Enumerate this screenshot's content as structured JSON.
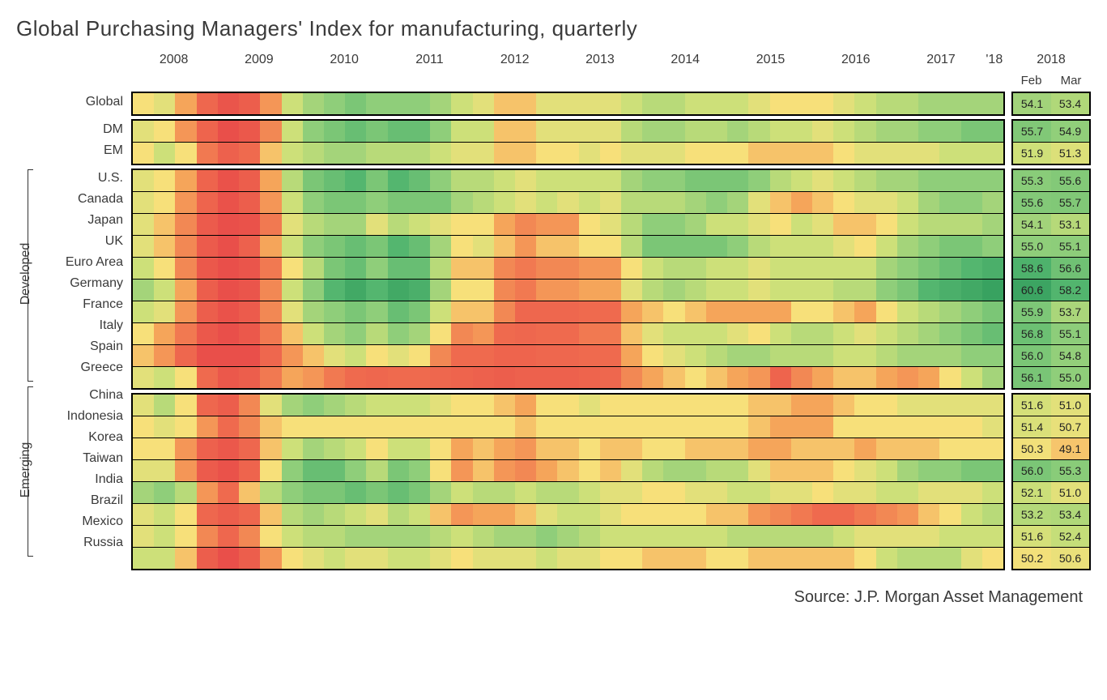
{
  "title": "Global Purchasing Managers' Index for manufacturing, quarterly",
  "source": "Source: J.P. Morgan Asset Management",
  "years": [
    "2008",
    "2009",
    "2010",
    "2011",
    "2012",
    "2013",
    "2014",
    "2015",
    "2016",
    "2017",
    "'18"
  ],
  "right_header": "2018",
  "right_sub": [
    "Feb",
    "Mar"
  ],
  "group_labels": {
    "developed": "Developed",
    "emerging": "Emerging"
  },
  "color_scale": {
    "min": 35,
    "max": 62,
    "stops": [
      {
        "v": 35,
        "c": "#e94f4a"
      },
      {
        "v": 44,
        "c": "#ef6a4e"
      },
      {
        "v": 48,
        "c": "#f5a55a"
      },
      {
        "v": 50,
        "c": "#f7e07a"
      },
      {
        "v": 52,
        "c": "#cde079"
      },
      {
        "v": 55,
        "c": "#8fce7a"
      },
      {
        "v": 58,
        "c": "#54b66f"
      },
      {
        "v": 62,
        "c": "#2f9b5b"
      }
    ]
  },
  "quarters_count": 41,
  "groups": [
    {
      "id": "global",
      "rows": [
        {
          "name": "Global",
          "vals": [
            50,
            51,
            48,
            43,
            37,
            40,
            47,
            52,
            54,
            55,
            56,
            55,
            55,
            55,
            54,
            52,
            51,
            49,
            49,
            51,
            51,
            51,
            51,
            52,
            53,
            53,
            52,
            52,
            52,
            51,
            50,
            50,
            50,
            51,
            52,
            53,
            53,
            54,
            54,
            54,
            54
          ],
          "feb": 54.1,
          "mar": 53.4
        }
      ]
    },
    {
      "id": "dm_em",
      "rows": [
        {
          "name": "DM",
          "vals": [
            51,
            50,
            47,
            42,
            35,
            38,
            46,
            52,
            55,
            56,
            57,
            56,
            57,
            57,
            55,
            52,
            52,
            49,
            49,
            51,
            51,
            51,
            51,
            53,
            54,
            54,
            53,
            53,
            54,
            53,
            52,
            52,
            51,
            52,
            53,
            54,
            54,
            55,
            55,
            56,
            56
          ],
          "feb": 55.7,
          "mar": 54.9
        },
        {
          "name": "EM",
          "vals": [
            50,
            52,
            50,
            45,
            41,
            44,
            49,
            52,
            53,
            54,
            54,
            53,
            53,
            53,
            52,
            51,
            51,
            49,
            49,
            50,
            50,
            51,
            50,
            51,
            51,
            51,
            50,
            50,
            50,
            49,
            49,
            49,
            49,
            50,
            51,
            51,
            51,
            51,
            52,
            52,
            52
          ],
          "feb": 51.9,
          "mar": 51.3
        }
      ]
    },
    {
      "id": "developed",
      "label": "Developed",
      "rows": [
        {
          "name": "U.S.",
          "vals": [
            51,
            50,
            48,
            42,
            36,
            40,
            48,
            53,
            56,
            57,
            58,
            56,
            58,
            57,
            55,
            53,
            53,
            52,
            51,
            52,
            52,
            52,
            52,
            54,
            55,
            55,
            56,
            56,
            56,
            55,
            53,
            52,
            51,
            52,
            53,
            54,
            54,
            55,
            55,
            55,
            55
          ],
          "feb": 55.3,
          "mar": 55.6
        },
        {
          "name": "Canada",
          "vals": [
            51,
            50,
            47,
            42,
            36,
            40,
            47,
            52,
            55,
            56,
            56,
            55,
            56,
            56,
            56,
            54,
            53,
            52,
            51,
            52,
            51,
            52,
            51,
            53,
            53,
            53,
            54,
            55,
            54,
            51,
            49,
            48,
            49,
            50,
            51,
            51,
            52,
            54,
            55,
            55,
            54
          ],
          "feb": 55.6,
          "mar": 55.7
        },
        {
          "name": "Japan",
          "vals": [
            51,
            49,
            46,
            39,
            32,
            36,
            45,
            51,
            53,
            54,
            54,
            51,
            53,
            52,
            51,
            50,
            50,
            48,
            46,
            47,
            47,
            50,
            51,
            53,
            55,
            55,
            54,
            52,
            52,
            51,
            50,
            52,
            51,
            49,
            49,
            50,
            52,
            53,
            53,
            53,
            54
          ],
          "feb": 54.1,
          "mar": 53.1
        },
        {
          "name": "UK",
          "vals": [
            51,
            49,
            46,
            39,
            35,
            41,
            48,
            52,
            55,
            56,
            57,
            56,
            58,
            57,
            54,
            50,
            51,
            49,
            47,
            49,
            49,
            50,
            50,
            53,
            56,
            56,
            56,
            56,
            55,
            53,
            52,
            52,
            52,
            51,
            50,
            52,
            54,
            55,
            56,
            56,
            55
          ],
          "feb": 55.0,
          "mar": 55.1
        },
        {
          "name": "Euro Area",
          "vals": [
            52,
            50,
            46,
            38,
            34,
            37,
            45,
            50,
            53,
            56,
            57,
            55,
            57,
            57,
            53,
            49,
            49,
            46,
            45,
            46,
            46,
            47,
            47,
            50,
            52,
            53,
            53,
            52,
            52,
            51,
            52,
            52,
            52,
            52,
            52,
            54,
            55,
            56,
            57,
            58,
            59
          ],
          "feb": 58.6,
          "mar": 56.6
        },
        {
          "name": "Germany",
          "vals": [
            54,
            52,
            48,
            40,
            34,
            37,
            46,
            52,
            55,
            58,
            60,
            58,
            60,
            59,
            54,
            50,
            50,
            46,
            45,
            47,
            47,
            48,
            48,
            51,
            53,
            54,
            53,
            52,
            52,
            51,
            52,
            52,
            52,
            53,
            53,
            55,
            56,
            58,
            59,
            60,
            61
          ],
          "feb": 60.6,
          "mar": 58.2
        },
        {
          "name": "France",
          "vals": [
            52,
            51,
            47,
            40,
            36,
            39,
            46,
            51,
            54,
            55,
            56,
            55,
            57,
            56,
            52,
            49,
            49,
            46,
            43,
            43,
            43,
            44,
            44,
            48,
            49,
            50,
            49,
            48,
            48,
            48,
            48,
            50,
            50,
            49,
            48,
            50,
            52,
            53,
            54,
            55,
            56
          ],
          "feb": 55.9,
          "mar": 53.7
        },
        {
          "name": "Italy",
          "vals": [
            50,
            48,
            45,
            38,
            35,
            38,
            45,
            49,
            52,
            54,
            55,
            53,
            55,
            54,
            50,
            46,
            47,
            44,
            43,
            44,
            44,
            45,
            45,
            49,
            51,
            52,
            52,
            52,
            51,
            50,
            52,
            53,
            53,
            52,
            51,
            52,
            53,
            54,
            55,
            56,
            57
          ],
          "feb": 56.8,
          "mar": 55.1
        },
        {
          "name": "Spain",
          "vals": [
            49,
            47,
            43,
            35,
            31,
            35,
            43,
            47,
            49,
            51,
            52,
            50,
            51,
            50,
            46,
            44,
            44,
            42,
            42,
            43,
            43,
            44,
            44,
            48,
            50,
            51,
            52,
            53,
            54,
            54,
            53,
            53,
            53,
            52,
            52,
            53,
            54,
            54,
            54,
            55,
            55
          ],
          "feb": 56.0,
          "mar": 54.8
        },
        {
          "name": "Greece",
          "vals": [
            51,
            52,
            50,
            44,
            38,
            40,
            45,
            48,
            47,
            45,
            44,
            43,
            44,
            44,
            43,
            42,
            41,
            40,
            41,
            41,
            41,
            42,
            43,
            46,
            48,
            49,
            50,
            49,
            48,
            47,
            42,
            46,
            48,
            49,
            49,
            48,
            47,
            48,
            50,
            52,
            54
          ],
          "feb": 56.1,
          "mar": 55.0
        }
      ]
    },
    {
      "id": "emerging",
      "label": "Emerging",
      "rows": [
        {
          "name": "China",
          "vals": [
            51,
            53,
            50,
            43,
            40,
            46,
            51,
            54,
            55,
            54,
            53,
            52,
            52,
            52,
            51,
            50,
            50,
            49,
            48,
            50,
            50,
            51,
            50,
            50,
            50,
            50,
            50,
            50,
            50,
            49,
            49,
            48,
            48,
            49,
            50,
            50,
            51,
            51,
            51,
            51,
            51
          ],
          "feb": 51.6,
          "mar": 51.0
        },
        {
          "name": "Indonesia",
          "vals": [
            50,
            51,
            50,
            47,
            44,
            46,
            49,
            50,
            50,
            50,
            50,
            50,
            50,
            50,
            50,
            50,
            50,
            50,
            49,
            50,
            50,
            50,
            50,
            50,
            50,
            50,
            50,
            50,
            50,
            49,
            48,
            48,
            48,
            50,
            50,
            50,
            50,
            50,
            50,
            50,
            51
          ],
          "feb": 51.4,
          "mar": 50.7
        },
        {
          "name": "Korea",
          "vals": [
            50,
            50,
            47,
            41,
            38,
            43,
            49,
            52,
            54,
            53,
            52,
            50,
            52,
            52,
            50,
            48,
            49,
            48,
            47,
            49,
            49,
            50,
            49,
            49,
            50,
            50,
            49,
            49,
            49,
            48,
            48,
            49,
            49,
            49,
            48,
            49,
            49,
            49,
            50,
            50,
            50
          ],
          "feb": 50.3,
          "mar": 49.1
        },
        {
          "name": "Taiwan",
          "vals": [
            51,
            51,
            47,
            39,
            36,
            42,
            50,
            55,
            57,
            57,
            55,
            53,
            56,
            55,
            50,
            47,
            49,
            47,
            46,
            48,
            49,
            50,
            49,
            51,
            53,
            54,
            54,
            53,
            53,
            51,
            49,
            49,
            49,
            50,
            51,
            52,
            54,
            55,
            55,
            56,
            56
          ],
          "feb": 56.0,
          "mar": 55.3
        },
        {
          "name": "India",
          "vals": [
            54,
            55,
            53,
            47,
            44,
            49,
            53,
            55,
            56,
            56,
            57,
            56,
            57,
            56,
            54,
            52,
            53,
            53,
            52,
            53,
            53,
            52,
            51,
            51,
            50,
            50,
            51,
            51,
            52,
            52,
            51,
            51,
            50,
            51,
            51,
            52,
            52,
            51,
            51,
            51,
            52
          ],
          "feb": 52.1,
          "mar": 51.0
        },
        {
          "name": "Brazil",
          "vals": [
            51,
            52,
            50,
            43,
            40,
            43,
            49,
            53,
            54,
            53,
            52,
            51,
            53,
            52,
            49,
            47,
            48,
            48,
            49,
            51,
            52,
            52,
            51,
            50,
            50,
            50,
            50,
            49,
            49,
            47,
            46,
            45,
            44,
            44,
            45,
            46,
            47,
            49,
            50,
            52,
            53
          ],
          "feb": 53.2,
          "mar": 53.4
        },
        {
          "name": "Mexico",
          "vals": [
            51,
            52,
            50,
            46,
            43,
            46,
            50,
            52,
            53,
            53,
            54,
            54,
            54,
            54,
            53,
            52,
            53,
            54,
            54,
            55,
            54,
            53,
            52,
            52,
            52,
            52,
            52,
            52,
            53,
            53,
            53,
            53,
            53,
            52,
            51,
            51,
            51,
            51,
            52,
            52,
            52
          ],
          "feb": 51.6,
          "mar": 52.4
        },
        {
          "name": "Russia",
          "vals": [
            52,
            52,
            49,
            40,
            35,
            40,
            47,
            50,
            51,
            52,
            51,
            51,
            52,
            52,
            51,
            50,
            51,
            51,
            51,
            52,
            51,
            51,
            50,
            50,
            49,
            49,
            49,
            50,
            50,
            49,
            49,
            49,
            49,
            49,
            50,
            52,
            53,
            53,
            53,
            51,
            50
          ],
          "feb": 50.2,
          "mar": 50.6
        }
      ]
    }
  ]
}
